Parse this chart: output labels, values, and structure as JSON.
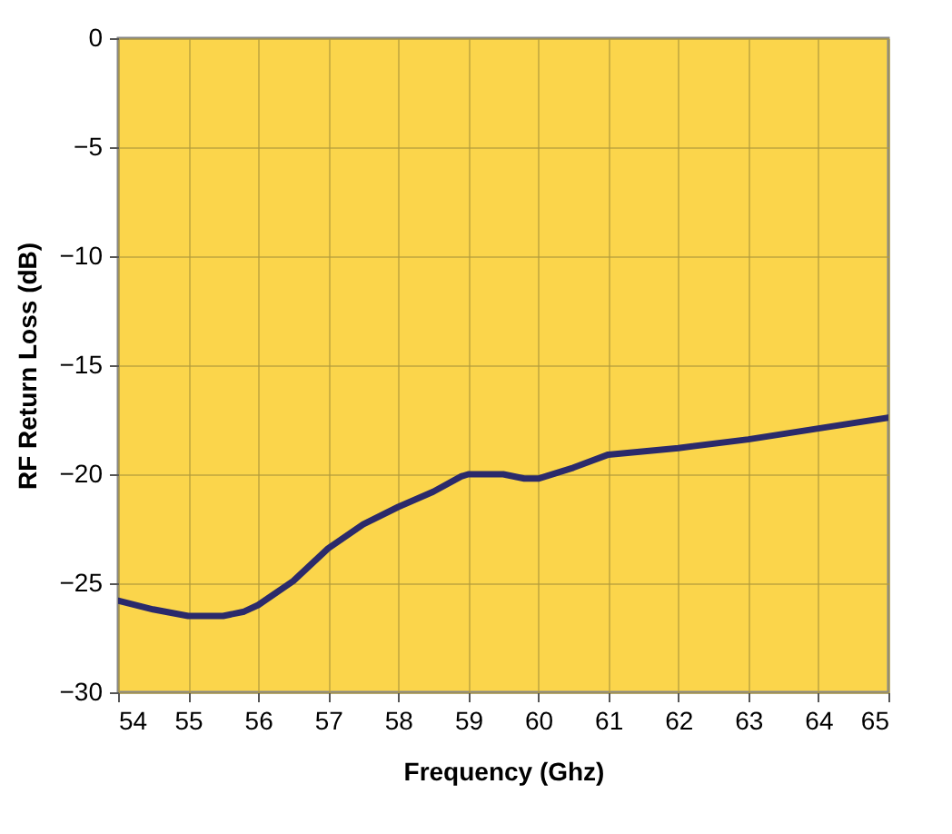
{
  "chart_data": {
    "type": "line",
    "xlabel": "Frequency (Ghz)",
    "ylabel": "RF Return Loss (dB)",
    "x": [
      54,
      54.5,
      55,
      55.5,
      55.8,
      56,
      56.5,
      57,
      57.5,
      58,
      58.5,
      58.9,
      59,
      59.5,
      59.8,
      60,
      60.5,
      61,
      62,
      63,
      64,
      65
    ],
    "series": [
      {
        "color": "#2b2a6b",
        "values": [
          -25.8,
          -26.2,
          -26.5,
          -26.5,
          -26.3,
          -26.0,
          -24.9,
          -23.4,
          -22.3,
          -21.5,
          -20.8,
          -20.1,
          -20.0,
          -20.0,
          -20.2,
          -20.2,
          -19.7,
          -19.1,
          -18.8,
          -18.4,
          -17.9,
          -17.4
        ]
      }
    ],
    "xlim": [
      54,
      65
    ],
    "xticks": [
      54,
      55,
      56,
      57,
      58,
      59,
      60,
      61,
      62,
      63,
      64,
      65
    ],
    "ylim": [
      -30,
      0
    ],
    "yticks": [
      -30,
      -25,
      -20,
      -15,
      -10,
      -5,
      0
    ],
    "grid": true,
    "line_style": "solid",
    "marker": "none"
  }
}
